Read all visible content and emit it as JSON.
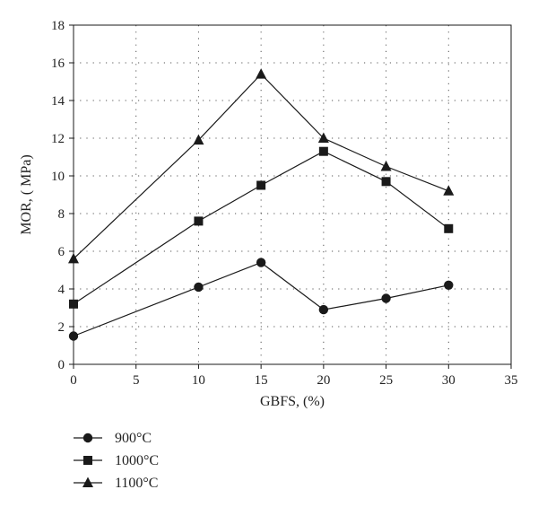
{
  "chart_data": {
    "type": "line",
    "title": "",
    "xlabel": "GBFS, (%)",
    "ylabel": "MOR, ( MPa)",
    "xlim": [
      0,
      35
    ],
    "ylim": [
      0,
      18
    ],
    "xticks": [
      0,
      5,
      10,
      15,
      20,
      25,
      30,
      35
    ],
    "yticks": [
      0,
      2,
      4,
      6,
      8,
      10,
      12,
      14,
      16,
      18
    ],
    "grid": true,
    "legend_position": "bottom-left",
    "x": [
      0,
      10,
      15,
      20,
      25,
      30
    ],
    "series": [
      {
        "name": "900°C",
        "marker": "circle",
        "values": [
          1.5,
          4.1,
          5.4,
          2.9,
          3.5,
          4.2
        ]
      },
      {
        "name": "1000°C",
        "marker": "square",
        "values": [
          3.2,
          7.6,
          9.5,
          11.3,
          9.7,
          7.2
        ]
      },
      {
        "name": "1100°C",
        "marker": "triangle",
        "values": [
          5.6,
          11.9,
          15.4,
          12.0,
          10.5,
          9.2
        ]
      }
    ],
    "colors": {
      "line": "#1a1a1a",
      "grid": "#555555",
      "axis": "#1a1a1a"
    }
  }
}
